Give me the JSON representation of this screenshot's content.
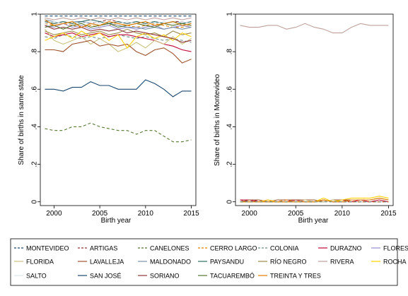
{
  "palette": {
    "MONTEVIDEO": "#1a476f",
    "ARTIGAS": "#90353b",
    "CANELONES": "#55752f",
    "CERRO LARGO": "#e37e00",
    "COLONIA": "#6e8e84",
    "DURAZNO": "#c10534",
    "FLORES": "#938dd2",
    "FLORIDA": "#cac27e",
    "LAVALLEJA": "#a0522d",
    "MALDONADO": "#7b92a8",
    "PAYSANDU": "#2d6d66",
    "RÍO NEGRO": "#9c8847",
    "RIVERA": "#bfa19c",
    "ROCHA": "#ffd200",
    "SALTO": "#d9e6eb",
    "SAN JOSÉ": "#1a476f",
    "SORIANO": "#90353b",
    "TACUAREMBÓ": "#55752f",
    "TREINTA Y TRES": "#e37e00"
  },
  "chart_data": [
    {
      "type": "line",
      "ylabel": "Share of births in same state",
      "xlabel": "Birth year",
      "xlim": [
        1998.5,
        2015.5
      ],
      "ylim": [
        -0.02,
        1.0
      ],
      "xticks": [
        2000,
        2005,
        2010,
        2015
      ],
      "xtick_labels": [
        "2000",
        "2005",
        "2010",
        "2015"
      ],
      "yticks": [
        0,
        0.2,
        0.4,
        0.6,
        0.8,
        1.0
      ],
      "ytick_labels": [
        "0",
        ".2",
        ".4",
        ".6",
        ".8",
        "1"
      ],
      "grid": "none",
      "x": [
        1999,
        2000,
        2001,
        2002,
        2003,
        2004,
        2005,
        2006,
        2007,
        2008,
        2009,
        2010,
        2011,
        2012,
        2013,
        2014,
        2015
      ],
      "series": [
        {
          "name": "MONTEVIDEO",
          "dash": "dash",
          "values": [
            0.99,
            0.99,
            0.99,
            0.99,
            0.99,
            0.99,
            0.99,
            0.99,
            0.99,
            0.99,
            0.99,
            0.99,
            0.99,
            0.99,
            0.99,
            0.99,
            0.99
          ]
        },
        {
          "name": "ARTIGAS",
          "dash": "dash",
          "values": [
            0.96,
            0.95,
            0.96,
            0.95,
            0.96,
            0.95,
            0.96,
            0.97,
            0.96,
            0.95,
            0.96,
            0.95,
            0.96,
            0.95,
            0.96,
            0.96,
            0.95
          ]
        },
        {
          "name": "CANELONES",
          "dash": "dash",
          "values": [
            0.39,
            0.38,
            0.38,
            0.4,
            0.4,
            0.42,
            0.4,
            0.39,
            0.38,
            0.38,
            0.36,
            0.38,
            0.38,
            0.35,
            0.32,
            0.32,
            0.33
          ]
        },
        {
          "name": "CERRO LARGO",
          "dash": "dash",
          "values": [
            0.95,
            0.94,
            0.95,
            0.94,
            0.93,
            0.94,
            0.93,
            0.94,
            0.95,
            0.94,
            0.93,
            0.94,
            0.95,
            0.94,
            0.93,
            0.93,
            0.94
          ]
        },
        {
          "name": "COLONIA",
          "dash": "dash",
          "values": [
            0.88,
            0.87,
            0.89,
            0.88,
            0.87,
            0.88,
            0.87,
            0.88,
            0.89,
            0.88,
            0.87,
            0.88,
            0.87,
            0.86,
            0.87,
            0.86,
            0.85
          ]
        },
        {
          "name": "DURAZNO",
          "dash": "solid",
          "values": [
            0.9,
            0.88,
            0.89,
            0.9,
            0.88,
            0.89,
            0.9,
            0.88,
            0.89,
            0.89,
            0.88,
            0.87,
            0.86,
            0.84,
            0.83,
            0.81,
            0.8
          ]
        },
        {
          "name": "FLORES",
          "dash": "solid",
          "values": [
            0.94,
            0.93,
            0.95,
            0.93,
            0.94,
            0.92,
            0.93,
            0.94,
            0.92,
            0.93,
            0.92,
            0.93,
            0.94,
            0.92,
            0.93,
            0.94,
            0.93
          ]
        },
        {
          "name": "FLORIDA",
          "dash": "solid",
          "values": [
            0.92,
            0.86,
            0.84,
            0.86,
            0.88,
            0.84,
            0.87,
            0.84,
            0.8,
            0.82,
            0.85,
            0.82,
            0.86,
            0.84,
            0.88,
            0.84,
            0.87
          ]
        },
        {
          "name": "LAVALLEJA",
          "dash": "solid",
          "values": [
            0.81,
            0.81,
            0.8,
            0.84,
            0.85,
            0.86,
            0.83,
            0.84,
            0.83,
            0.84,
            0.8,
            0.78,
            0.81,
            0.82,
            0.79,
            0.74,
            0.76
          ]
        },
        {
          "name": "MALDONADO",
          "dash": "solid",
          "values": [
            0.97,
            0.96,
            0.95,
            0.96,
            0.96,
            0.95,
            0.94,
            0.95,
            0.94,
            0.93,
            0.93,
            0.92,
            0.93,
            0.92,
            0.93,
            0.92,
            0.93
          ]
        },
        {
          "name": "PAYSANDU",
          "dash": "solid",
          "values": [
            0.96,
            0.95,
            0.96,
            0.95,
            0.96,
            0.97,
            0.96,
            0.95,
            0.96,
            0.95,
            0.96,
            0.95,
            0.96,
            0.95,
            0.96,
            0.95,
            0.96
          ]
        },
        {
          "name": "RÍO NEGRO",
          "dash": "solid",
          "values": [
            0.91,
            0.89,
            0.9,
            0.91,
            0.89,
            0.9,
            0.91,
            0.89,
            0.9,
            0.92,
            0.9,
            0.89,
            0.9,
            0.88,
            0.91,
            0.89,
            0.9
          ]
        },
        {
          "name": "RIVERA",
          "dash": "solid",
          "values": [
            0.98,
            0.97,
            0.98,
            0.97,
            0.98,
            0.97,
            0.98,
            0.97,
            0.98,
            0.97,
            0.98,
            0.97,
            0.98,
            0.97,
            0.98,
            0.97,
            0.98
          ]
        },
        {
          "name": "ROCHA",
          "dash": "solid",
          "values": [
            0.86,
            0.88,
            0.9,
            0.87,
            0.91,
            0.88,
            0.9,
            0.86,
            0.89,
            0.82,
            0.88,
            0.9,
            0.87,
            0.89,
            0.86,
            0.9,
            0.88
          ]
        },
        {
          "name": "SALTO",
          "dash": "solid",
          "values": [
            0.95,
            0.96,
            0.95,
            0.96,
            0.95,
            0.96,
            0.95,
            0.96,
            0.95,
            0.96,
            0.95,
            0.96,
            0.95,
            0.96,
            0.95,
            0.96,
            0.95
          ]
        },
        {
          "name": "SAN JOSÉ",
          "dash": "solid",
          "values": [
            0.6,
            0.6,
            0.59,
            0.61,
            0.61,
            0.64,
            0.62,
            0.62,
            0.6,
            0.6,
            0.6,
            0.65,
            0.63,
            0.6,
            0.56,
            0.59,
            0.59
          ]
        },
        {
          "name": "SORIANO",
          "dash": "solid",
          "values": [
            0.94,
            0.92,
            0.93,
            0.92,
            0.93,
            0.91,
            0.92,
            0.91,
            0.92,
            0.9,
            0.91,
            0.9,
            0.89,
            0.88,
            0.87,
            0.85,
            0.86
          ]
        },
        {
          "name": "TACUAREMBÓ",
          "dash": "solid",
          "values": [
            0.93,
            0.94,
            0.92,
            0.94,
            0.95,
            0.93,
            0.94,
            0.95,
            0.93,
            0.94,
            0.95,
            0.94,
            0.93,
            0.95,
            0.94,
            0.95,
            0.94
          ]
        },
        {
          "name": "TREINTA Y TRES",
          "dash": "solid",
          "values": [
            0.97,
            0.94,
            0.95,
            0.96,
            0.93,
            0.95,
            0.94,
            0.96,
            0.95,
            0.94,
            0.95,
            0.96,
            0.94,
            0.95,
            0.96,
            0.94,
            0.95
          ]
        }
      ]
    },
    {
      "type": "line",
      "ylabel": "Share of births in Montevideo",
      "xlabel": "Birth year",
      "xlim": [
        1998.5,
        2015.5
      ],
      "ylim": [
        -0.02,
        1.0
      ],
      "xticks": [
        2000,
        2005,
        2010,
        2015
      ],
      "xtick_labels": [
        "2000",
        "2005",
        "2010",
        "2015"
      ],
      "yticks": [
        0,
        0.2,
        0.4,
        0.6,
        0.8,
        1.0
      ],
      "ytick_labels": [
        "0",
        ".2",
        ".4",
        ".6",
        ".8",
        "1"
      ],
      "grid": "none",
      "x": [
        1999,
        2000,
        2001,
        2002,
        2003,
        2004,
        2005,
        2006,
        2007,
        2008,
        2009,
        2010,
        2011,
        2012,
        2013,
        2014,
        2015
      ],
      "series": [
        {
          "name": "RIVERA",
          "dash": "solid",
          "values": [
            0.94,
            0.93,
            0.93,
            0.94,
            0.94,
            0.92,
            0.93,
            0.95,
            0.93,
            0.92,
            0.9,
            0.9,
            0.93,
            0.95,
            0.94,
            0.94,
            0.94
          ]
        },
        {
          "name": "ARTIGAS",
          "dash": "dash",
          "values": [
            0.01,
            0.0,
            0.01,
            0.0,
            0.0,
            0.01,
            0.0,
            0.0,
            0.0,
            0.01,
            0.0,
            0.0,
            0.0,
            0.0,
            0.0,
            0.0,
            0.0
          ]
        },
        {
          "name": "DURAZNO",
          "dash": "solid",
          "values": [
            0.01,
            0.01,
            0.0,
            0.01,
            0.0,
            0.0,
            0.01,
            0.0,
            0.0,
            0.01,
            0.0,
            0.01,
            0.0,
            0.01,
            0.0,
            0.01,
            0.0
          ]
        },
        {
          "name": "LAVALLEJA",
          "dash": "solid",
          "values": [
            0.0,
            0.01,
            0.01,
            0.0,
            0.01,
            0.01,
            0.01,
            0.01,
            0.01,
            0.0,
            0.01,
            0.01,
            0.01,
            0.01,
            0.01,
            0.02,
            0.01
          ]
        },
        {
          "name": "FLORIDA",
          "dash": "solid",
          "values": [
            0.0,
            0.0,
            0.0,
            0.0,
            0.0,
            0.0,
            0.0,
            0.01,
            0.0,
            0.0,
            0.01,
            0.0,
            0.01,
            0.01,
            0.01,
            0.02,
            0.01
          ]
        },
        {
          "name": "CERRO LARGO",
          "dash": "dash",
          "values": [
            0.0,
            0.0,
            0.0,
            0.0,
            0.0,
            0.01,
            0.0,
            0.0,
            0.0,
            0.01,
            0.0,
            0.0,
            0.0,
            0.0,
            0.0,
            0.0,
            0.0
          ]
        },
        {
          "name": "ROCHA",
          "dash": "solid",
          "values": [
            0.0,
            0.0,
            0.0,
            0.01,
            0.0,
            0.0,
            0.0,
            0.0,
            0.0,
            0.02,
            0.0,
            0.01,
            0.02,
            0.02,
            0.02,
            0.03,
            0.02
          ]
        },
        {
          "name": "TREINTA Y TRES",
          "dash": "solid",
          "values": [
            0.0,
            0.0,
            0.0,
            0.0,
            0.0,
            0.0,
            0.0,
            0.0,
            0.0,
            0.01,
            0.0,
            0.0,
            0.01,
            0.01,
            0.01,
            0.02,
            0.01
          ]
        },
        {
          "name": "COLONIA",
          "dash": "dash",
          "values": [
            0.0,
            0.0,
            0.0,
            0.0,
            0.0,
            0.0,
            0.0,
            0.0,
            0.0,
            0.0,
            0.0,
            0.0,
            0.0,
            0.0,
            0.0,
            0.0,
            0.0
          ]
        }
      ]
    }
  ],
  "legend": {
    "placement": "bottom",
    "items": [
      {
        "label": "MONTEVIDEO",
        "dash": "dash"
      },
      {
        "label": "ARTIGAS",
        "dash": "dash"
      },
      {
        "label": "CANELONES",
        "dash": "dash"
      },
      {
        "label": "CERRO LARGO",
        "dash": "dash"
      },
      {
        "label": "COLONIA",
        "dash": "dash"
      },
      {
        "label": "DURAZNO",
        "dash": "solid"
      },
      {
        "label": "FLORES",
        "dash": "solid"
      },
      {
        "label": "FLORIDA",
        "dash": "solid"
      },
      {
        "label": "LAVALLEJA",
        "dash": "solid"
      },
      {
        "label": "MALDONADO",
        "dash": "solid"
      },
      {
        "label": "PAYSANDU",
        "dash": "solid"
      },
      {
        "label": "RÍO NEGRO",
        "dash": "solid"
      },
      {
        "label": "RIVERA",
        "dash": "solid"
      },
      {
        "label": "ROCHA",
        "dash": "solid"
      },
      {
        "label": "SALTO",
        "dash": "solid"
      },
      {
        "label": "SAN JOSÉ",
        "dash": "solid"
      },
      {
        "label": "SORIANO",
        "dash": "solid"
      },
      {
        "label": "TACUAREMBÓ",
        "dash": "solid"
      },
      {
        "label": "TREINTA Y TRES",
        "dash": "solid"
      }
    ]
  }
}
